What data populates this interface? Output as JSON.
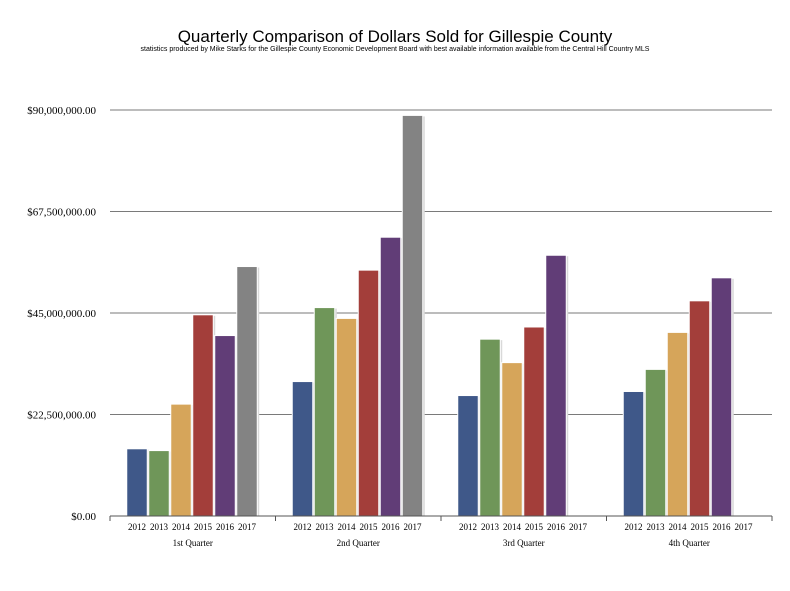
{
  "chart_data": {
    "type": "bar",
    "title": "Quarterly Comparison of Dollars Sold for Gillespie County",
    "subtitle": "statistics produced by Mike Starks for the Gillespie County Economic Development Board with best available information available from the Central Hill Country MLS",
    "xlabel": "",
    "ylabel": "",
    "ylim": [
      0,
      90000000
    ],
    "y_ticks": [
      0,
      22500000,
      45000000,
      67500000,
      90000000
    ],
    "y_tick_labels": [
      "$0.00",
      "$22,500,000.00",
      "$45,000,000.00",
      "$67,500,000.00",
      "$90,000,000.00"
    ],
    "grid": true,
    "categories": [
      "1st Quarter",
      "2nd Quarter",
      "3rd Quarter",
      "4th Quarter"
    ],
    "series": [
      {
        "name": "2012",
        "color": "#3f5889",
        "values": [
          14900000,
          29800000,
          26700000,
          27600000
        ]
      },
      {
        "name": "2013",
        "color": "#6f9659",
        "values": [
          14500000,
          46200000,
          39200000,
          32500000
        ]
      },
      {
        "name": "2014",
        "color": "#d6a55a",
        "values": [
          24800000,
          43800000,
          34000000,
          40700000
        ]
      },
      {
        "name": "2015",
        "color": "#a33e3a",
        "values": [
          44600000,
          54500000,
          41900000,
          47700000
        ]
      },
      {
        "name": "2016",
        "color": "#613d77",
        "values": [
          40000000,
          61800000,
          57800000,
          52800000
        ]
      },
      {
        "name": "2017",
        "color": "#838383",
        "values": [
          55300000,
          88800000,
          null,
          null
        ]
      }
    ]
  }
}
